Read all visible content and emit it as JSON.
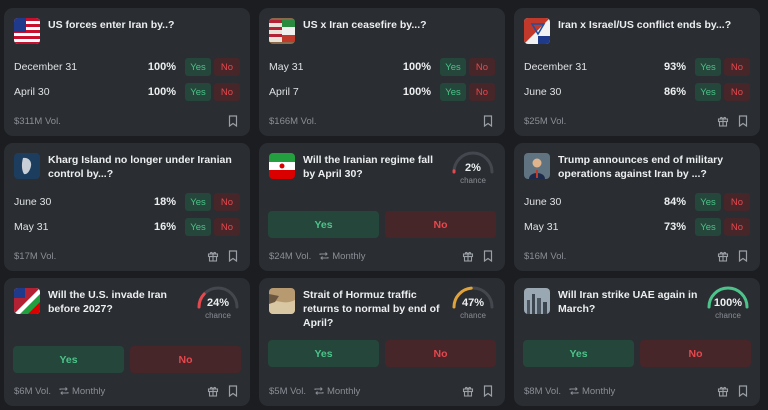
{
  "colors": {
    "background": "#1b1d21",
    "card": "#2a2d31",
    "yes": "#4cc38a",
    "no": "#e5484d"
  },
  "markets": [
    {
      "title": "US forces enter Iran by..?",
      "thumb": "us-flag",
      "volume": "$311M Vol.",
      "outcomes": [
        {
          "label": "December 31",
          "pct": "100%"
        },
        {
          "label": "April 30",
          "pct": "100%"
        }
      ],
      "yes": "Yes",
      "no": "No"
    },
    {
      "title": "US x Iran ceasefire by...?",
      "thumb": "us-iran-flags",
      "volume": "$166M Vol.",
      "outcomes": [
        {
          "label": "May 31",
          "pct": "100%"
        },
        {
          "label": "April 7",
          "pct": "100%"
        }
      ],
      "yes": "Yes",
      "no": "No"
    },
    {
      "title": "Iran x Israel/US conflict ends by...?",
      "thumb": "iran-israel-flags",
      "volume": "$25M Vol.",
      "outcomes": [
        {
          "label": "December 31",
          "pct": "93%"
        },
        {
          "label": "June 30",
          "pct": "86%"
        }
      ],
      "yes": "Yes",
      "no": "No"
    },
    {
      "title": "Kharg Island no longer under Iranian control by...?",
      "thumb": "island-map",
      "volume": "$17M Vol.",
      "outcomes": [
        {
          "label": "June 30",
          "pct": "18%"
        },
        {
          "label": "May 31",
          "pct": "16%"
        }
      ],
      "yes": "Yes",
      "no": "No"
    },
    {
      "title": "Will the Iranian regime fall by April 30?",
      "thumb": "iran-flag",
      "volume": "$24M Vol.",
      "recurrence": "Monthly",
      "chance": "2%",
      "chance_value": 0.02,
      "chance_label": "chance",
      "gauge_color": "#e5484d",
      "yes": "Yes",
      "no": "No"
    },
    {
      "title": "Trump announces end of military operations against Iran by ...?",
      "thumb": "trump-photo",
      "volume": "$16M Vol.",
      "outcomes": [
        {
          "label": "June 30",
          "pct": "84%"
        },
        {
          "label": "May 31",
          "pct": "73%"
        }
      ],
      "yes": "Yes",
      "no": "No"
    },
    {
      "title": "Will the U.S. invade Iran before 2027?",
      "thumb": "us-iran-flags-2",
      "volume": "$6M Vol.",
      "recurrence": "Monthly",
      "chance": "24%",
      "chance_value": 0.24,
      "chance_label": "chance",
      "gauge_color": "#e5484d",
      "yes": "Yes",
      "no": "No"
    },
    {
      "title": "Strait of Hormuz traffic returns to normal by end of April?",
      "thumb": "strait-photo",
      "volume": "$5M Vol.",
      "recurrence": "Monthly",
      "chance": "47%",
      "chance_value": 0.47,
      "chance_label": "chance",
      "gauge_color": "#e0a33a",
      "yes": "Yes",
      "no": "No"
    },
    {
      "title": "Will Iran strike UAE again in March?",
      "thumb": "uae-skyline",
      "volume": "$8M Vol.",
      "recurrence": "Monthly",
      "chance": "100%",
      "chance_value": 1.0,
      "chance_label": "chance",
      "gauge_color": "#4cc38a",
      "yes": "Yes",
      "no": "No"
    }
  ]
}
